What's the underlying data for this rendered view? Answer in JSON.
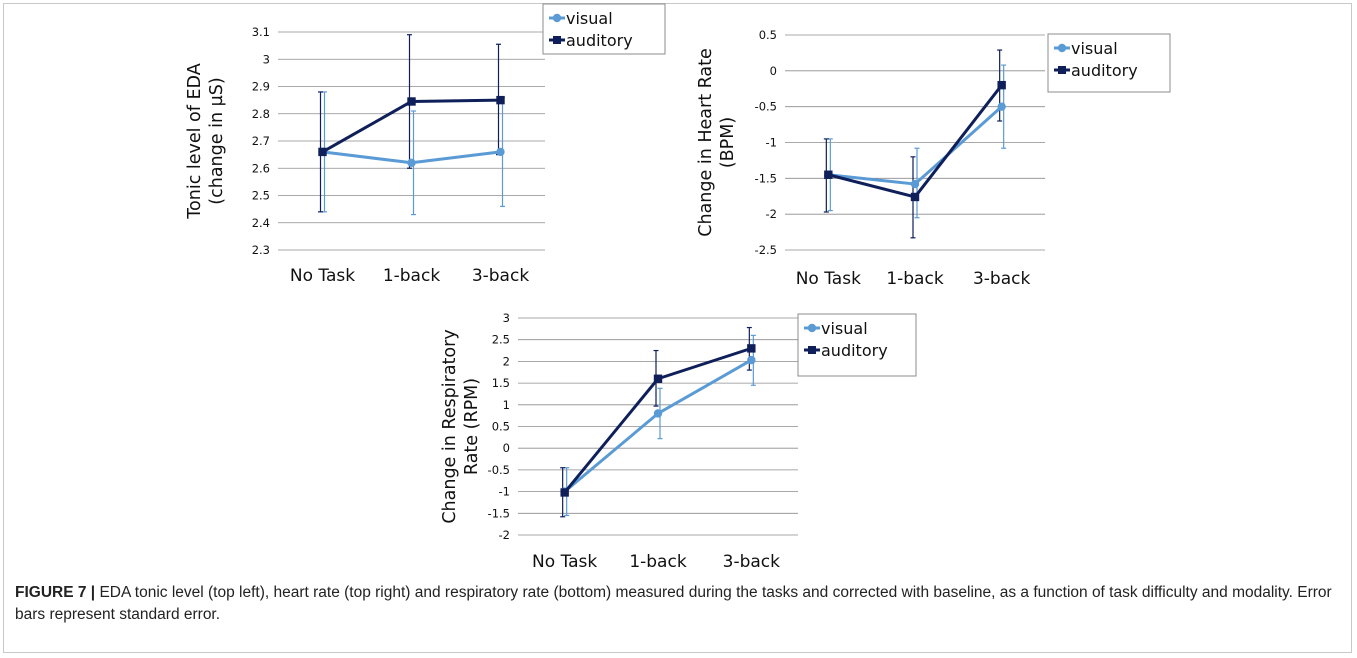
{
  "colors": {
    "visual": "#5b9bd5",
    "auditory": "#0f1f5a",
    "grid": "#8c8c8c"
  },
  "chart_data": [
    {
      "type": "line",
      "title": "",
      "xlabel": "",
      "ylabel_lines": [
        "Tonic level of EDA",
        "(change in µS)"
      ],
      "categories": [
        "No Task",
        "1-back",
        "3-back"
      ],
      "ylim": [
        2.3,
        3.1
      ],
      "yticks": [
        2.3,
        2.4,
        2.5,
        2.6,
        2.7,
        2.8,
        2.9,
        3,
        3.1
      ],
      "grid": true,
      "legend_position": "top-right",
      "series": [
        {
          "name": "visual",
          "marker": "circle",
          "values": [
            2.66,
            2.62,
            2.66
          ],
          "err_low": [
            2.44,
            2.43,
            2.46
          ],
          "err_high": [
            2.88,
            2.81,
            2.86
          ]
        },
        {
          "name": "auditory",
          "marker": "square",
          "values": [
            2.66,
            2.845,
            2.85
          ],
          "err_low": [
            2.44,
            2.6,
            2.65
          ],
          "err_high": [
            2.88,
            3.09,
            3.055
          ]
        }
      ]
    },
    {
      "type": "line",
      "title": "",
      "xlabel": "",
      "ylabel_lines": [
        "Change in Heart Rate",
        "(BPM)"
      ],
      "categories": [
        "No Task",
        "1-back",
        "3-back"
      ],
      "ylim": [
        -2.5,
        0.5
      ],
      "yticks": [
        -2.5,
        -2,
        -1.5,
        -1,
        -0.5,
        0,
        0.5
      ],
      "grid": true,
      "legend_position": "top-right",
      "series": [
        {
          "name": "visual",
          "marker": "circle",
          "values": [
            -1.45,
            -1.58,
            -0.5
          ],
          "err_low": [
            -1.95,
            -2.05,
            -1.08
          ],
          "err_high": [
            -0.95,
            -1.08,
            0.08
          ]
        },
        {
          "name": "auditory",
          "marker": "square",
          "values": [
            -1.45,
            -1.76,
            -0.2
          ],
          "err_low": [
            -1.97,
            -2.33,
            -0.7
          ],
          "err_high": [
            -0.95,
            -1.2,
            0.29
          ]
        }
      ]
    },
    {
      "type": "line",
      "title": "",
      "xlabel": "",
      "ylabel_lines": [
        "Change in Respiratory",
        "Rate (RPM)"
      ],
      "categories": [
        "No Task",
        "1-back",
        "3-back"
      ],
      "ylim": [
        -2,
        3
      ],
      "yticks": [
        -2,
        -1.5,
        -1,
        -0.5,
        0,
        0.5,
        1,
        1.5,
        2,
        2.5,
        3
      ],
      "grid": true,
      "legend_position": "top-right",
      "series": [
        {
          "name": "visual",
          "marker": "circle",
          "values": [
            -1.0,
            0.8,
            2.03
          ],
          "err_low": [
            -1.55,
            0.22,
            1.45
          ],
          "err_high": [
            -0.45,
            1.38,
            2.6
          ]
        },
        {
          "name": "auditory",
          "marker": "square",
          "values": [
            -1.02,
            1.6,
            2.3
          ],
          "err_low": [
            -1.58,
            0.97,
            1.8
          ],
          "err_high": [
            -0.45,
            2.25,
            2.78
          ]
        }
      ]
    }
  ],
  "caption": {
    "label": "FIGURE 7 |",
    "text": " EDA tonic level (top left), heart rate (top right) and respiratory rate (bottom) measured during the tasks and corrected with baseline, as a function of task difficulty and modality. Error bars represent standard error."
  }
}
